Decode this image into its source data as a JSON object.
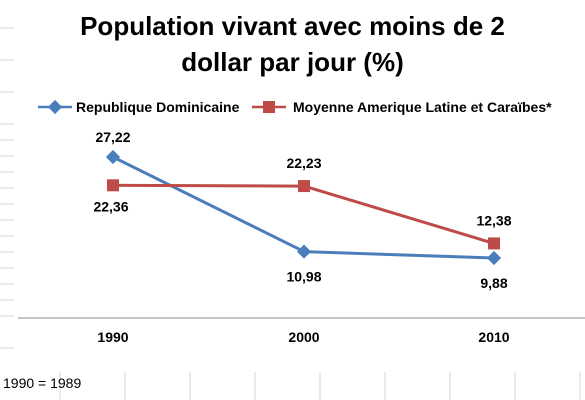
{
  "chart_data": {
    "type": "line",
    "title_lines": [
      "Population vivant avec moins de 2",
      "dollar par jour (%)"
    ],
    "categories": [
      "1990",
      "2000",
      "2010"
    ],
    "series": [
      {
        "name": "Republique Dominicaine",
        "values": [
          27.22,
          10.98,
          9.88
        ],
        "labels": [
          "27,22",
          "10,98",
          "9,88"
        ],
        "color": "#4a7ebb",
        "marker": "diamond"
      },
      {
        "name": "Moyenne Amerique Latine et Caraïbes*",
        "values": [
          22.36,
          22.23,
          12.38
        ],
        "labels": [
          "22,36",
          "22,23",
          "12,38"
        ],
        "color": "#be4b48",
        "marker": "square"
      }
    ],
    "legend_position": "top",
    "gridlines": false,
    "axis_labels_visible": false
  },
  "footnote": "1990 = 1989"
}
